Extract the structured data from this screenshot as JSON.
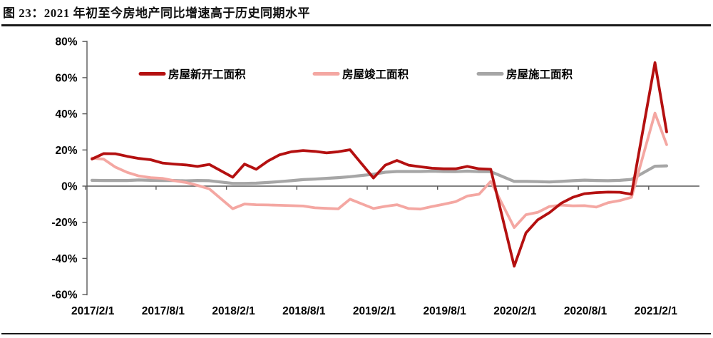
{
  "document": {
    "title": "图 23：2021 年初至今房地产同比增速高于历史同期水平"
  },
  "chart_data": {
    "type": "line",
    "title": "2021 年初至今房地产同比增速高于历史同期水平",
    "unit": "%",
    "grid": false,
    "legend_position": "top-center",
    "background": "#ffffff",
    "axis_color": "#595959",
    "ylim": [
      -60,
      80
    ],
    "y_ticks": [
      80,
      60,
      40,
      20,
      0,
      -20,
      -40,
      -60
    ],
    "y_tick_labels": [
      "80%",
      "60%",
      "40%",
      "20%",
      "0%",
      "-20%",
      "-40%",
      "-60%"
    ],
    "x_tick_labels": [
      "2017/2/1",
      "2017/8/1",
      "2018/2/1",
      "2018/8/1",
      "2019/2/1",
      "2019/8/1",
      "2020/2/1",
      "2020/8/1",
      "2021/2/1"
    ],
    "months": [
      "2017/2",
      "2017/3",
      "2017/4",
      "2017/5",
      "2017/6",
      "2017/7",
      "2017/8",
      "2017/9",
      "2017/10",
      "2017/11",
      "2017/12",
      "2018/2",
      "2018/3",
      "2018/4",
      "2018/5",
      "2018/6",
      "2018/7",
      "2018/8",
      "2018/9",
      "2018/10",
      "2018/11",
      "2018/12",
      "2019/2",
      "2019/3",
      "2019/4",
      "2019/5",
      "2019/6",
      "2019/7",
      "2019/8",
      "2019/9",
      "2019/10",
      "2019/11",
      "2019/12",
      "2020/2",
      "2020/3",
      "2020/4",
      "2020/5",
      "2020/6",
      "2020/7",
      "2020/8",
      "2020/9",
      "2020/10",
      "2020/11",
      "2020/12",
      "2021/2",
      "2021/3"
    ],
    "month_offsets": [
      0,
      1,
      2,
      3,
      4,
      5,
      6,
      7,
      8,
      9,
      10,
      12,
      13,
      14,
      15,
      16,
      17,
      18,
      19,
      20,
      21,
      22,
      24,
      25,
      26,
      27,
      28,
      29,
      30,
      31,
      32,
      33,
      34,
      36,
      37,
      38,
      39,
      40,
      41,
      42,
      43,
      44,
      45,
      46,
      48,
      49
    ],
    "series": [
      {
        "key": "new-starts",
        "name": "房屋新开工面积",
        "color": "#b41010",
        "line_width": 3.8,
        "values": [
          15.0,
          18.0,
          17.9,
          16.5,
          15.3,
          14.6,
          12.8,
          12.2,
          11.7,
          10.9,
          12.0,
          4.9,
          12.2,
          9.3,
          13.9,
          17.3,
          19.0,
          19.7,
          19.2,
          18.4,
          19.0,
          20.1,
          4.5,
          11.6,
          14.2,
          11.6,
          10.7,
          9.9,
          9.6,
          9.6,
          10.9,
          9.6,
          9.3,
          -44.3,
          -25.9,
          -18.7,
          -14.7,
          -9.5,
          -6.2,
          -4.2,
          -3.6,
          -3.3,
          -3.4,
          -4.5,
          68.3,
          30.0
        ]
      },
      {
        "key": "completions",
        "name": "房屋竣工面积",
        "color": "#f4a7a2",
        "line_width": 3.8,
        "values": [
          15.5,
          14.9,
          10.5,
          7.6,
          5.6,
          4.7,
          4.3,
          3.0,
          2.0,
          0.4,
          -1.5,
          -12.5,
          -9.9,
          -10.3,
          -10.4,
          -10.6,
          -10.8,
          -11.0,
          -12.0,
          -12.3,
          -12.6,
          -7.2,
          -12.4,
          -11.2,
          -10.3,
          -12.4,
          -12.7,
          -11.3,
          -10.0,
          -8.6,
          -5.5,
          -4.5,
          2.6,
          -22.9,
          -15.8,
          -14.5,
          -11.3,
          -10.5,
          -10.9,
          -10.8,
          -11.6,
          -9.2,
          -8.0,
          -6.2,
          40.4,
          22.9
        ]
      },
      {
        "key": "under-construction",
        "name": "房屋施工面积",
        "color": "#a6a6a6",
        "line_width": 4.2,
        "values": [
          3.2,
          3.1,
          3.1,
          3.1,
          3.4,
          3.2,
          3.1,
          3.1,
          2.9,
          3.1,
          3.0,
          1.5,
          1.5,
          1.6,
          2.0,
          2.5,
          3.0,
          3.6,
          3.9,
          4.3,
          4.7,
          5.2,
          6.6,
          7.7,
          8.1,
          8.1,
          8.1,
          8.3,
          8.1,
          8.0,
          8.3,
          8.0,
          8.0,
          2.6,
          2.6,
          2.5,
          2.3,
          2.6,
          3.0,
          3.3,
          3.1,
          3.0,
          3.2,
          3.7,
          11.0,
          11.2
        ]
      }
    ]
  }
}
